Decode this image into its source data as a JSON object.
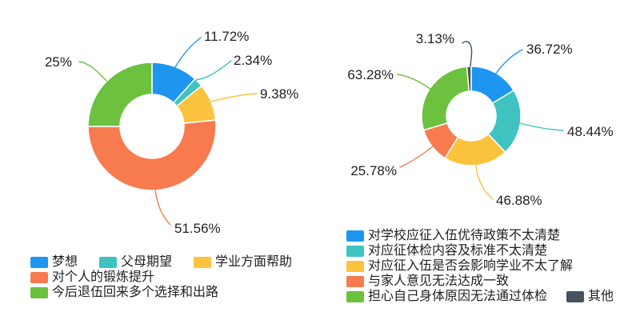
{
  "page": {
    "background": "#ffffff",
    "text_color": "#1f1f1f"
  },
  "chart_data": [
    {
      "type": "pie",
      "subtype": "donut",
      "title": "",
      "legend_position": "bottom-left",
      "start_angle_deg": 0,
      "direction": "clockwise",
      "categories": [
        "梦想",
        "父母期望",
        "学业方面帮助",
        "对个人的锻炼提升",
        "今后退伍回来多个选择和出路"
      ],
      "values": [
        11.72,
        2.34,
        9.38,
        51.56,
        25
      ],
      "labels": [
        "11.72%",
        "2.34%",
        "9.38%",
        "51.56%",
        "25%"
      ],
      "colors": [
        "#1d96f0",
        "#3ec3c0",
        "#fcc33f",
        "#f77b4f",
        "#6cc13f"
      ]
    },
    {
      "type": "pie",
      "subtype": "donut",
      "title": "",
      "legend_position": "bottom-right",
      "start_angle_deg": 0,
      "direction": "clockwise",
      "categories": [
        "对学校应征入伍优待政策不太清楚",
        "对应征体检内容及标准不太清楚",
        "对应征入伍是否会影响学业不太了解",
        "与家人意见无法达成一致",
        "担心自己身体原因无法通过体检",
        "其他"
      ],
      "values": [
        36.72,
        48.44,
        46.88,
        25.78,
        63.28,
        3.13
      ],
      "labels": [
        "36.72%",
        "48.44%",
        "46.88%",
        "25.78%",
        "63.28%",
        "3.13%"
      ],
      "colors": [
        "#1d96f0",
        "#3ec3c0",
        "#fcc33f",
        "#f77b4f",
        "#6cc13f",
        "#46535e"
      ]
    }
  ]
}
